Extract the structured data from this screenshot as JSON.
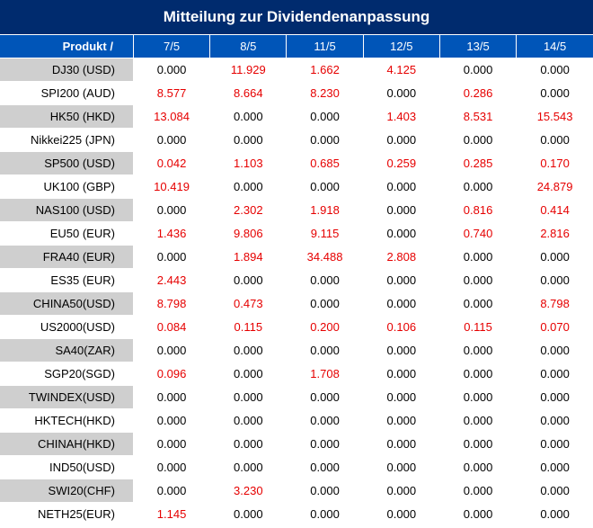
{
  "title": "Mitteilung zur Dividendenanpassung",
  "header": {
    "product_label": "Produkt /",
    "dates": [
      "7/5",
      "8/5",
      "11/5",
      "12/5",
      "13/5",
      "14/5"
    ]
  },
  "colors": {
    "title_bg": "#002b6e",
    "header_bg": "#0055b8",
    "nonzero": "#e60000",
    "stripe": "#cfcfcf"
  },
  "rows": [
    {
      "name": "DJ30 (USD)",
      "values": [
        "0.000",
        "11.929",
        "1.662",
        "4.125",
        "0.000",
        "0.000"
      ]
    },
    {
      "name": "SPI200 (AUD)",
      "values": [
        "8.577",
        "8.664",
        "8.230",
        "0.000",
        "0.286",
        "0.000"
      ]
    },
    {
      "name": "HK50 (HKD)",
      "values": [
        "13.084",
        "0.000",
        "0.000",
        "1.403",
        "8.531",
        "15.543"
      ]
    },
    {
      "name": "Nikkei225 (JPN)",
      "values": [
        "0.000",
        "0.000",
        "0.000",
        "0.000",
        "0.000",
        "0.000"
      ]
    },
    {
      "name": "SP500 (USD)",
      "values": [
        "0.042",
        "1.103",
        "0.685",
        "0.259",
        "0.285",
        "0.170"
      ]
    },
    {
      "name": "UK100 (GBP)",
      "values": [
        "10.419",
        "0.000",
        "0.000",
        "0.000",
        "0.000",
        "24.879"
      ]
    },
    {
      "name": "NAS100 (USD)",
      "values": [
        "0.000",
        "2.302",
        "1.918",
        "0.000",
        "0.816",
        "0.414"
      ]
    },
    {
      "name": "EU50 (EUR)",
      "values": [
        "1.436",
        "9.806",
        "9.115",
        "0.000",
        "0.740",
        "2.816"
      ]
    },
    {
      "name": "FRA40 (EUR)",
      "values": [
        "0.000",
        "1.894",
        "34.488",
        "2.808",
        "0.000",
        "0.000"
      ]
    },
    {
      "name": "ES35 (EUR)",
      "values": [
        "2.443",
        "0.000",
        "0.000",
        "0.000",
        "0.000",
        "0.000"
      ]
    },
    {
      "name": "CHINA50(USD)",
      "values": [
        "8.798",
        "0.473",
        "0.000",
        "0.000",
        "0.000",
        "8.798"
      ]
    },
    {
      "name": "US2000(USD)",
      "values": [
        "0.084",
        "0.115",
        "0.200",
        "0.106",
        "0.115",
        "0.070"
      ]
    },
    {
      "name": "SA40(ZAR)",
      "values": [
        "0.000",
        "0.000",
        "0.000",
        "0.000",
        "0.000",
        "0.000"
      ]
    },
    {
      "name": "SGP20(SGD)",
      "values": [
        "0.096",
        "0.000",
        "1.708",
        "0.000",
        "0.000",
        "0.000"
      ]
    },
    {
      "name": "TWINDEX(USD)",
      "values": [
        "0.000",
        "0.000",
        "0.000",
        "0.000",
        "0.000",
        "0.000"
      ]
    },
    {
      "name": "HKTECH(HKD)",
      "values": [
        "0.000",
        "0.000",
        "0.000",
        "0.000",
        "0.000",
        "0.000"
      ]
    },
    {
      "name": "CHINAH(HKD)",
      "values": [
        "0.000",
        "0.000",
        "0.000",
        "0.000",
        "0.000",
        "0.000"
      ]
    },
    {
      "name": "IND50(USD)",
      "values": [
        "0.000",
        "0.000",
        "0.000",
        "0.000",
        "0.000",
        "0.000"
      ]
    },
    {
      "name": "SWI20(CHF)",
      "values": [
        "0.000",
        "3.230",
        "0.000",
        "0.000",
        "0.000",
        "0.000"
      ]
    },
    {
      "name": "NETH25(EUR)",
      "values": [
        "1.145",
        "0.000",
        "0.000",
        "0.000",
        "0.000",
        "0.000"
      ]
    }
  ]
}
